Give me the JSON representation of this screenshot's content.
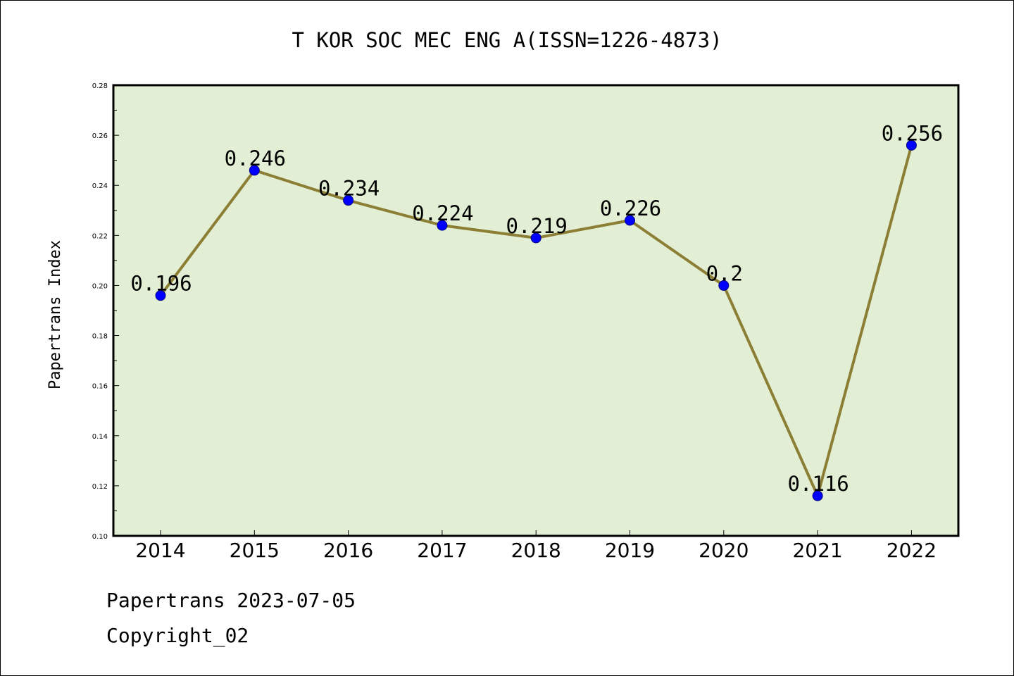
{
  "chart_data": {
    "type": "line",
    "title": "T KOR SOC MEC ENG A(ISSN=1226-4873)",
    "xlabel": "",
    "ylabel": "Papertrans Index",
    "categories": [
      "2014",
      "2015",
      "2016",
      "2017",
      "2018",
      "2019",
      "2020",
      "2021",
      "2022"
    ],
    "values": [
      0.196,
      0.246,
      0.234,
      0.224,
      0.219,
      0.226,
      0.2,
      0.116,
      0.256
    ],
    "data_labels": [
      "0.196",
      "0.246",
      "0.234",
      "0.224",
      "0.219",
      "0.226",
      "0.2",
      "0.116",
      "0.256"
    ],
    "ylim": [
      0.1,
      0.28
    ],
    "yticks": [
      0.1,
      0.12,
      0.14,
      0.16,
      0.18,
      0.2,
      0.22,
      0.24,
      0.26,
      0.28
    ],
    "ytick_labels": [
      "0.10",
      "0.12",
      "0.14",
      "0.16",
      "0.18",
      "0.20",
      "0.22",
      "0.24",
      "0.26",
      "0.28"
    ],
    "grid": false,
    "colors": {
      "plot_background": "#e2efd4",
      "line": "#8c7f35",
      "marker": "#0000ff",
      "marker_edge": "#000080"
    }
  },
  "footer": {
    "line1": "Papertrans 2023-07-05",
    "line2": "Copyright_02"
  }
}
